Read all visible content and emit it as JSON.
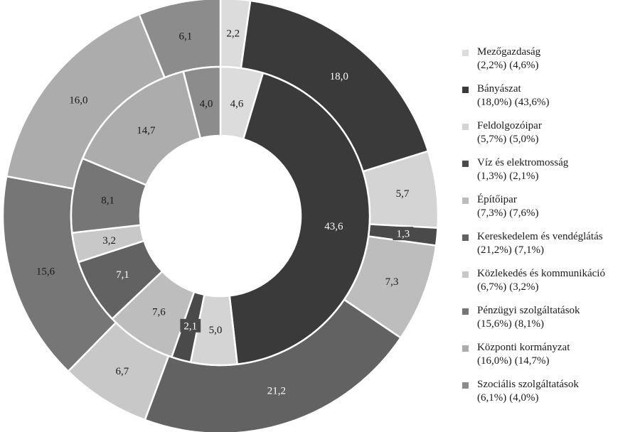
{
  "chart_data": {
    "type": "pie",
    "rings": [
      {
        "ring": "outer",
        "values": [
          2.2,
          18.0,
          5.7,
          1.3,
          7.3,
          21.2,
          6.7,
          15.6,
          16.0,
          6.1
        ],
        "labels": [
          "2,2",
          "18,0",
          "5,7",
          "1,3",
          "7,3",
          "21,2",
          "6,7",
          "15,6",
          "16,0",
          "6,1"
        ]
      },
      {
        "ring": "inner",
        "values": [
          4.6,
          43.6,
          5.0,
          2.1,
          7.6,
          7.1,
          3.2,
          8.1,
          14.7,
          4.0
        ],
        "labels": [
          "4,6",
          "43,6",
          "5,0",
          "2,1",
          "7,6",
          "7,1",
          "3,2",
          "8,1",
          "14,7",
          "4,0"
        ]
      }
    ],
    "categories": [
      {
        "name": "Mezőgazdaság",
        "outer_text": "(2,2%)",
        "inner_text": "(4,6%)",
        "color": "#dcdcdc"
      },
      {
        "name": "Bányászat",
        "outer_text": "(18,0%)",
        "inner_text": "(43,6%)",
        "color": "#3a3a3a"
      },
      {
        "name": "Feldolgozóipar",
        "outer_text": "(5,7%)",
        "inner_text": "(5,0%)",
        "color": "#d4d4d4"
      },
      {
        "name": "Víz és elektromosság",
        "outer_text": "(1,3%)",
        "inner_text": "(2,1%)",
        "color": "#4a4a4a"
      },
      {
        "name": "Építőipar",
        "outer_text": "(7,3%)",
        "inner_text": "(7,6%)",
        "color": "#bdbdbd"
      },
      {
        "name": "Kereskedelem és vendéglátás",
        "outer_text": "(21,2%)",
        "inner_text": "(7,1%)",
        "color": "#626262"
      },
      {
        "name": "Közlekedés és kommunikáció",
        "outer_text": "(6,7%)",
        "inner_text": "(3,2%)",
        "color": "#c8c8c8"
      },
      {
        "name": "Pénzügyi szolgáltatások",
        "outer_text": "(15,6%)",
        "inner_text": "(8,1%)",
        "color": "#767676"
      },
      {
        "name": "Központi kormányzat",
        "outer_text": "(16,0%)",
        "inner_text": "(14,7%)",
        "color": "#acacac"
      },
      {
        "name": "Szociális szolgáltatások",
        "outer_text": "(6,1%)",
        "inner_text": "(4,0%)",
        "color": "#8c8c8c"
      }
    ],
    "legend_position": "right",
    "start_angle": "top, clockwise"
  }
}
